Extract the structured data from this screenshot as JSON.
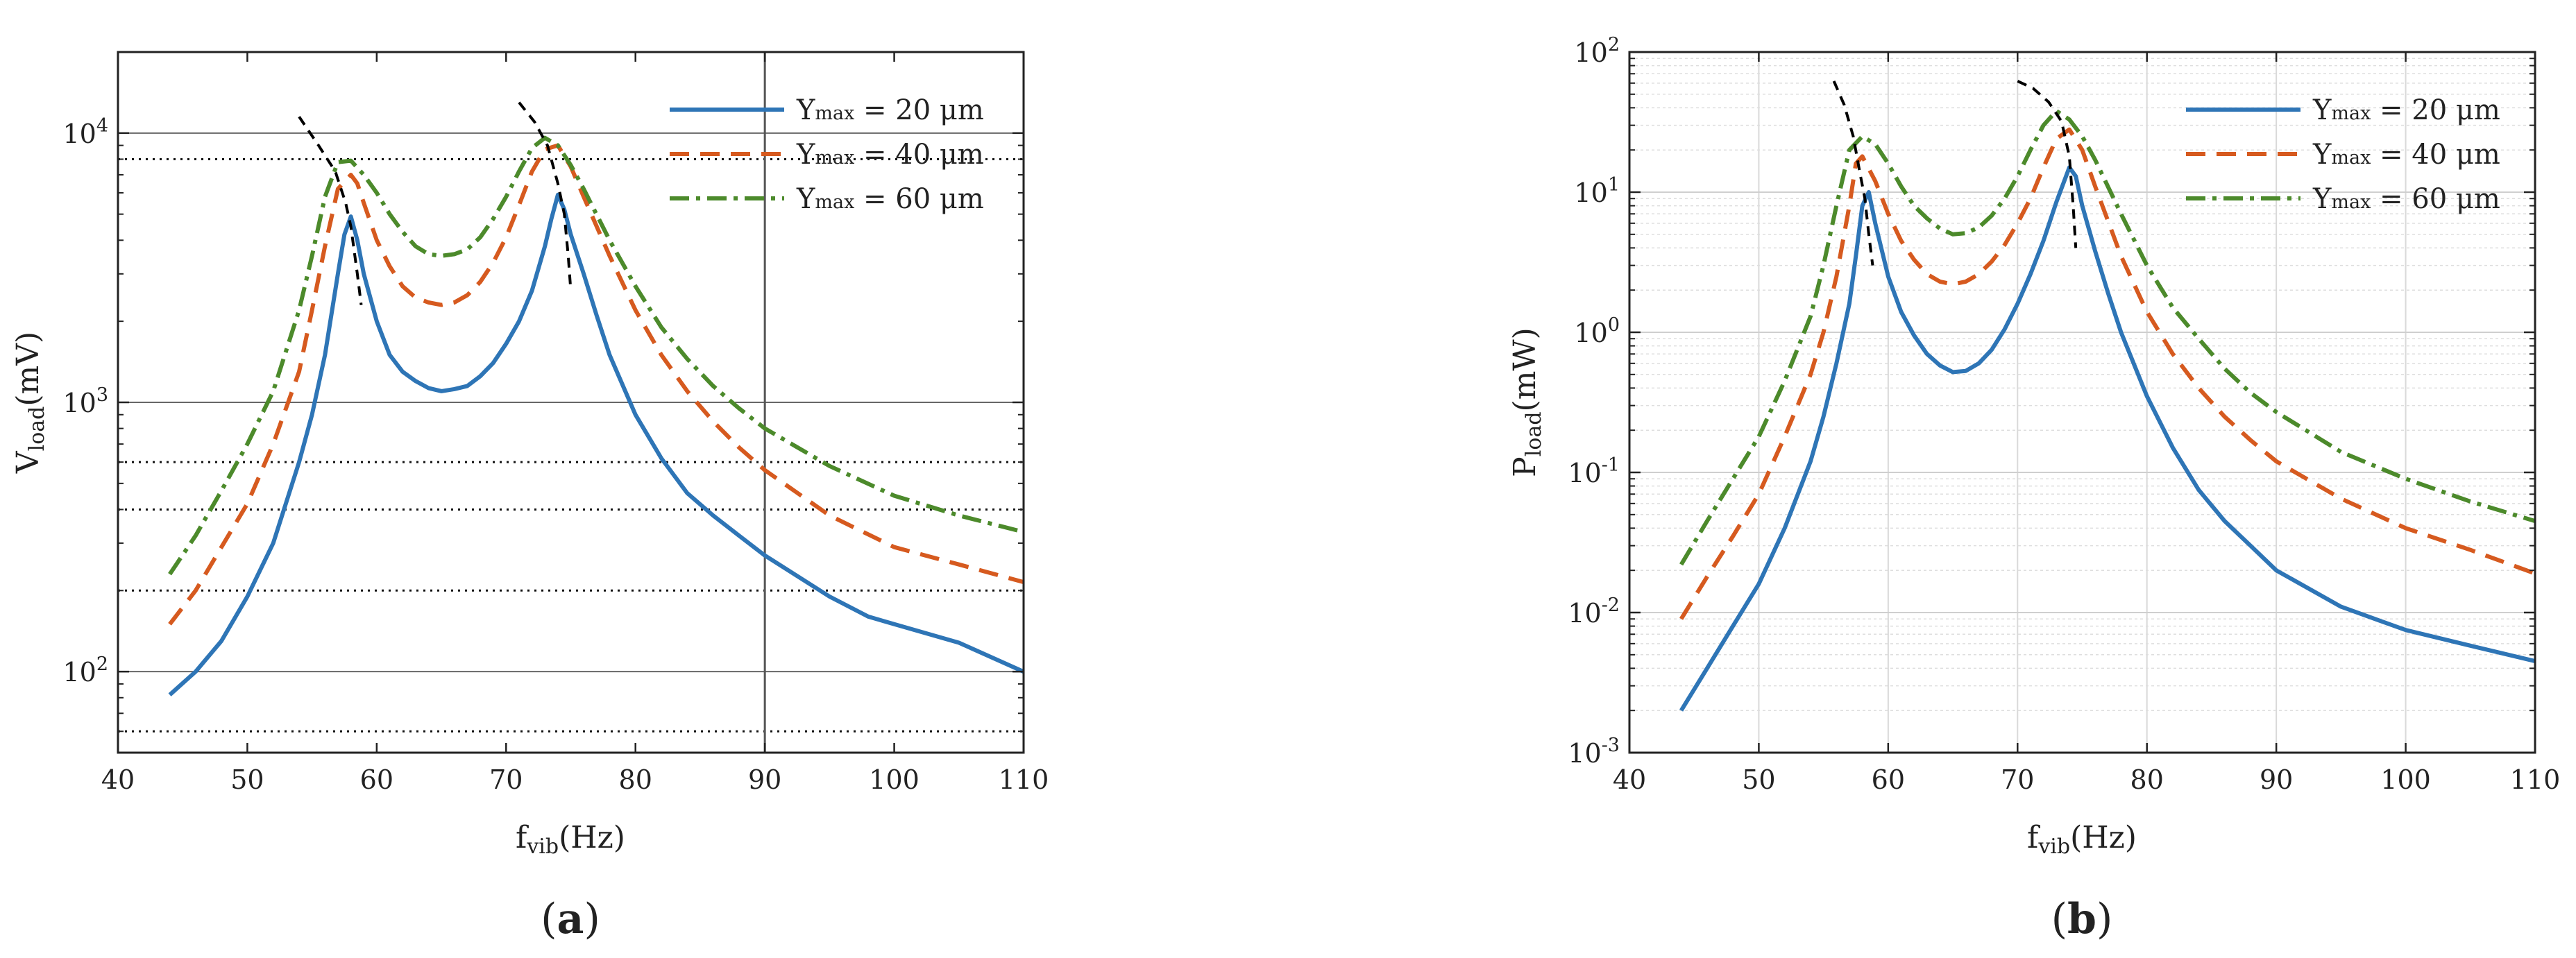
{
  "figure": {
    "colors": {
      "Ymax = 20 µm": "#2e75b6",
      "Ymax = 40 µm": "#d65a1f",
      "Ymax = 60 µm": "#4c8a2b",
      "peak_trace": "#000000"
    },
    "panels": [
      {
        "tag_open": "(",
        "tag_letter": "a",
        "tag_close": ")",
        "ylabel_main": "V",
        "ylabel_sub": "load",
        "ylabel_unit": "(mV)",
        "xlabel_main": "f",
        "xlabel_sub": "vib",
        "xlabel_unit": "(Hz)"
      },
      {
        "tag_open": "(",
        "tag_letter": "b",
        "tag_close": ")",
        "ylabel_main": "P",
        "ylabel_sub": "load",
        "ylabel_unit": "(mW)",
        "xlabel_main": "f",
        "xlabel_sub": "vib",
        "xlabel_unit": "(Hz)"
      }
    ]
  },
  "chart_data": [
    {
      "type": "line",
      "title": "",
      "xlabel": "f_vib (Hz)",
      "ylabel": "V_load (mV)",
      "xscale": "linear",
      "yscale": "log",
      "xlim": [
        40,
        110
      ],
      "ylim": [
        50,
        20000
      ],
      "xticks": [
        40,
        50,
        60,
        70,
        80,
        90,
        100,
        110
      ],
      "xtick_labels": [
        "40",
        "50",
        "60",
        "70",
        "80",
        "90",
        "100",
        "110"
      ],
      "yticks": [
        100,
        1000,
        10000
      ],
      "ytick_labels": [
        {
          "base": "10",
          "exp": "2"
        },
        {
          "base": "10",
          "exp": "3"
        },
        {
          "base": "10",
          "exp": "4"
        }
      ],
      "legend": {
        "position": "top-right",
        "entries": [
          {
            "prefix": "Y",
            "sub": "max",
            "suffix": " = 20 μm",
            "series": "Ymax = 20 µm"
          },
          {
            "prefix": "Y",
            "sub": "max",
            "suffix": " = 40 μm",
            "series": "Ymax = 40 µm"
          },
          {
            "prefix": "Y",
            "sub": "max",
            "suffix": " = 60 μm",
            "series": "Ymax = 60 µm"
          }
        ]
      },
      "reference_lines": {
        "solid_y": [
          100,
          1000,
          10000
        ],
        "dotted_y": [
          60,
          200,
          400,
          600,
          8000
        ],
        "solid_x": [
          90
        ]
      },
      "series": [
        {
          "name": "Ymax = 20 µm",
          "style": "solid",
          "x": [
            44,
            46,
            48,
            50,
            52,
            54,
            55,
            56,
            57,
            57.5,
            58,
            58.5,
            59,
            60,
            61,
            62,
            63,
            64,
            65,
            66,
            67,
            68,
            69,
            70,
            71,
            72,
            73,
            73.5,
            74,
            74.5,
            75,
            76,
            77,
            78,
            80,
            82,
            84,
            86,
            88,
            90,
            95,
            98,
            100,
            105,
            110
          ],
          "y": [
            82,
            100,
            130,
            190,
            300,
            600,
            900,
            1500,
            3000,
            4200,
            4900,
            4000,
            3000,
            2000,
            1500,
            1300,
            1200,
            1130,
            1100,
            1120,
            1150,
            1250,
            1400,
            1650,
            2000,
            2600,
            3800,
            4800,
            5900,
            5200,
            4200,
            3000,
            2100,
            1500,
            900,
            620,
            460,
            380,
            320,
            270,
            190,
            160,
            150,
            128,
            100
          ]
        },
        {
          "name": "Ymax = 40 µm",
          "style": "dashed",
          "x": [
            44,
            46,
            48,
            50,
            52,
            54,
            55,
            56,
            57,
            58,
            58.5,
            59,
            60,
            61,
            62,
            63,
            64,
            65,
            66,
            67,
            68,
            69,
            70,
            71,
            72,
            73,
            74,
            75,
            76,
            78,
            80,
            82,
            84,
            86,
            88,
            90,
            95,
            100,
            105,
            110
          ],
          "y": [
            150,
            200,
            290,
            420,
            700,
            1300,
            2200,
            3800,
            6200,
            7000,
            6500,
            5500,
            4000,
            3200,
            2700,
            2450,
            2350,
            2300,
            2350,
            2500,
            2800,
            3300,
            4100,
            5400,
            7200,
            8700,
            9000,
            7500,
            5800,
            3500,
            2200,
            1500,
            1100,
            850,
            680,
            560,
            380,
            290,
            250,
            215
          ]
        },
        {
          "name": "Ymax = 60 µm",
          "style": "dashdot",
          "x": [
            44,
            46,
            48,
            50,
            52,
            54,
            55,
            56,
            57,
            58,
            59,
            60,
            61,
            62,
            63,
            64,
            65,
            66,
            67,
            68,
            69,
            70,
            71,
            72,
            73,
            74,
            75,
            76,
            78,
            80,
            82,
            84,
            86,
            88,
            90,
            95,
            100,
            105,
            110
          ],
          "y": [
            230,
            320,
            470,
            700,
            1100,
            2200,
            3500,
            5800,
            7800,
            7900,
            7000,
            6000,
            5000,
            4300,
            3800,
            3550,
            3500,
            3550,
            3700,
            4100,
            4800,
            5800,
            7200,
            8800,
            9600,
            9000,
            7600,
            6200,
            4000,
            2700,
            1900,
            1450,
            1150,
            950,
            800,
            580,
            450,
            380,
            330
          ]
        },
        {
          "name": "Peak trace 1",
          "style": "peak",
          "x": [
            54,
            55.5,
            56.8,
            57.6,
            58,
            58.5,
            58.8
          ],
          "y": [
            11500,
            9000,
            7200,
            5500,
            4500,
            3000,
            2300
          ]
        },
        {
          "name": "Peak trace 2",
          "style": "peak",
          "x": [
            71,
            72.2,
            73.2,
            74,
            74.5,
            74.8,
            75
          ],
          "y": [
            13000,
            11000,
            9000,
            6500,
            5000,
            3500,
            2600
          ]
        }
      ]
    },
    {
      "type": "line",
      "title": "",
      "xlabel": "f_vib (Hz)",
      "ylabel": "P_load (mW)",
      "xscale": "linear",
      "yscale": "log",
      "xlim": [
        40,
        110
      ],
      "ylim": [
        0.001,
        100
      ],
      "xticks": [
        40,
        50,
        60,
        70,
        80,
        90,
        100,
        110
      ],
      "xtick_labels": [
        "40",
        "50",
        "60",
        "70",
        "80",
        "90",
        "100",
        "110"
      ],
      "yticks": [
        0.001,
        0.01,
        0.1,
        1,
        10,
        100
      ],
      "ytick_labels": [
        {
          "base": "10",
          "exp": "-3"
        },
        {
          "base": "10",
          "exp": "-2"
        },
        {
          "base": "10",
          "exp": "-1"
        },
        {
          "base": "10",
          "exp": "0"
        },
        {
          "base": "10",
          "exp": "1"
        },
        {
          "base": "10",
          "exp": "2"
        }
      ],
      "grid": true,
      "legend": {
        "position": "top-right",
        "entries": [
          {
            "prefix": "Y",
            "sub": "max",
            "suffix": " = 20 μm",
            "series": "Ymax = 20 µm"
          },
          {
            "prefix": "Y",
            "sub": "max",
            "suffix": " = 40 μm",
            "series": "Ymax = 40 µm"
          },
          {
            "prefix": "Y",
            "sub": "max",
            "suffix": " = 60 μm",
            "series": "Ymax = 60 µm"
          }
        ]
      },
      "series": [
        {
          "name": "Ymax = 20 µm",
          "style": "solid",
          "x": [
            44,
            46,
            48,
            50,
            52,
            54,
            55,
            56,
            57,
            57.5,
            58,
            58.5,
            59,
            60,
            61,
            62,
            63,
            64,
            65,
            66,
            67,
            68,
            69,
            70,
            71,
            72,
            73,
            74,
            74.5,
            75,
            76,
            77,
            78,
            80,
            82,
            84,
            86,
            88,
            90,
            95,
            100,
            105,
            110
          ],
          "y": [
            0.002,
            0.004,
            0.008,
            0.016,
            0.04,
            0.12,
            0.25,
            0.6,
            1.6,
            3.5,
            8,
            10,
            6,
            2.5,
            1.4,
            0.95,
            0.7,
            0.58,
            0.52,
            0.53,
            0.6,
            0.75,
            1.05,
            1.6,
            2.6,
            4.5,
            8.5,
            15,
            13,
            8,
            3.8,
            1.9,
            1,
            0.35,
            0.15,
            0.075,
            0.045,
            0.03,
            0.02,
            0.011,
            0.0075,
            0.0058,
            0.0045
          ]
        },
        {
          "name": "Ymax = 40 µm",
          "style": "dashed",
          "x": [
            44,
            46,
            48,
            50,
            52,
            54,
            55,
            56,
            57,
            57.5,
            58,
            59,
            60,
            61,
            62,
            63,
            64,
            65,
            66,
            67,
            68,
            69,
            70,
            71,
            72,
            73,
            74,
            75,
            76,
            78,
            80,
            82,
            84,
            86,
            88,
            90,
            95,
            100,
            105,
            110
          ],
          "y": [
            0.009,
            0.018,
            0.035,
            0.07,
            0.18,
            0.5,
            1,
            2.5,
            8,
            16,
            18,
            12,
            7,
            4.5,
            3.3,
            2.6,
            2.3,
            2.2,
            2.3,
            2.6,
            3.2,
            4.2,
            6,
            9,
            15,
            24,
            28,
            20,
            11,
            3.5,
            1.4,
            0.7,
            0.4,
            0.25,
            0.17,
            0.12,
            0.065,
            0.04,
            0.028,
            0.019
          ]
        },
        {
          "name": "Ymax = 60 µm",
          "style": "dashdot",
          "x": [
            44,
            46,
            48,
            50,
            52,
            54,
            55,
            56,
            57,
            58,
            59,
            60,
            61,
            62,
            63,
            64,
            65,
            66,
            67,
            68,
            69,
            70,
            71,
            72,
            73,
            74,
            75,
            76,
            78,
            80,
            82,
            84,
            86,
            88,
            90,
            95,
            100,
            105,
            110
          ],
          "y": [
            0.022,
            0.045,
            0.09,
            0.18,
            0.45,
            1.3,
            3,
            8,
            20,
            25,
            22,
            16,
            11,
            8,
            6.5,
            5.5,
            5,
            5.1,
            5.6,
            6.8,
            9,
            13,
            20,
            30,
            38,
            33,
            25,
            17,
            7,
            3,
            1.5,
            0.9,
            0.55,
            0.37,
            0.27,
            0.14,
            0.09,
            0.062,
            0.045
          ]
        },
        {
          "name": "Peak trace 1",
          "style": "peak",
          "x": [
            55.8,
            56.6,
            57.3,
            57.8,
            58.2,
            58.5,
            58.8
          ],
          "y": [
            62,
            42,
            25,
            14,
            9,
            5,
            3
          ]
        },
        {
          "name": "Peak trace 2",
          "style": "peak",
          "x": [
            70,
            71.2,
            72.4,
            73.4,
            74,
            74.3,
            74.5
          ],
          "y": [
            62,
            55,
            44,
            32,
            18,
            8,
            4
          ]
        }
      ]
    }
  ]
}
